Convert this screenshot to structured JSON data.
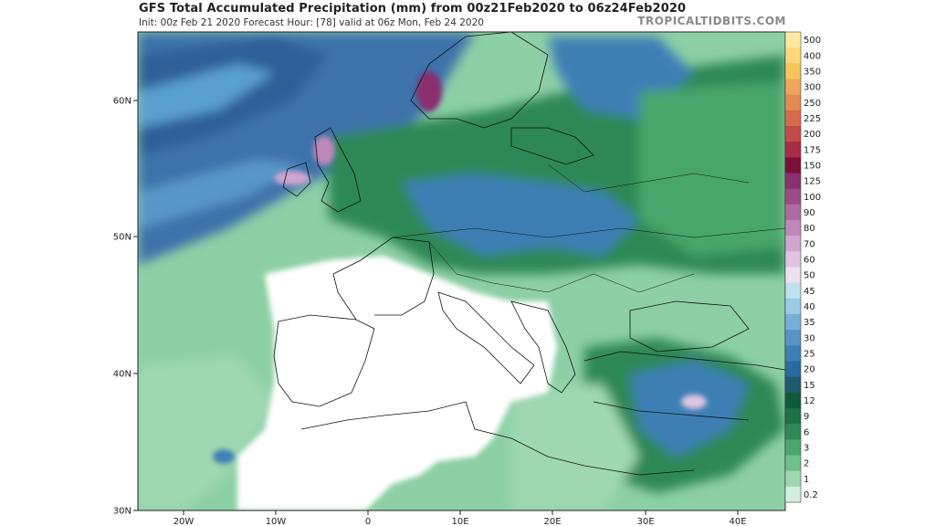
{
  "header": {
    "title": "GFS Total Accumulated Precipitation (mm) from 00z21Feb2020 to 06z24Feb2020",
    "subtitle": "Init: 00z Feb 21 2020   Forecast Hour: [78]   valid at 06z Mon, Feb 24 2020",
    "brand": "TROPICALTIDBITS.COM"
  },
  "axes": {
    "lat_labels": [
      "60N",
      "50N",
      "40N",
      "30N"
    ],
    "lon_labels": [
      "20W",
      "10W",
      "0",
      "10E",
      "20E",
      "30E",
      "40E"
    ]
  },
  "colorbar": {
    "levels": [
      {
        "label": "500",
        "color": "#ffe9a2"
      },
      {
        "label": "400",
        "color": "#fbd97a"
      },
      {
        "label": "350",
        "color": "#f6c45e"
      },
      {
        "label": "300",
        "color": "#efa65a"
      },
      {
        "label": "250",
        "color": "#e48a52"
      },
      {
        "label": "225",
        "color": "#d66b4c"
      },
      {
        "label": "200",
        "color": "#c04a4a"
      },
      {
        "label": "175",
        "color": "#a82c45"
      },
      {
        "label": "150",
        "color": "#7d0f3a"
      },
      {
        "label": "125",
        "color": "#8a2f6e"
      },
      {
        "label": "100",
        "color": "#9b4b8a"
      },
      {
        "label": "90",
        "color": "#ad6aa3"
      },
      {
        "label": "80",
        "color": "#bf88ba"
      },
      {
        "label": "70",
        "color": "#d0a6cf"
      },
      {
        "label": "60",
        "color": "#e0c4e2"
      },
      {
        "label": "50",
        "color": "#eedff1"
      },
      {
        "label": "45",
        "color": "#bfe1ef"
      },
      {
        "label": "40",
        "color": "#9bcbe5"
      },
      {
        "label": "35",
        "color": "#76b0d6"
      },
      {
        "label": "30",
        "color": "#5694c4"
      },
      {
        "label": "25",
        "color": "#3e7fb5"
      },
      {
        "label": "20",
        "color": "#2a6aa0"
      },
      {
        "label": "15",
        "color": "#1f5a6e"
      },
      {
        "label": "12",
        "color": "#0f5a3c"
      },
      {
        "label": "9",
        "color": "#1d7048"
      },
      {
        "label": "6",
        "color": "#2f8855"
      },
      {
        "label": "3",
        "color": "#4aa66a"
      },
      {
        "label": "2",
        "color": "#6fc08a"
      },
      {
        "label": "1",
        "color": "#9fd8b0"
      },
      {
        "label": "0.2",
        "color": "#d3eedc"
      }
    ]
  },
  "colors": {
    "ocean_heavy": "#3a6fa8",
    "ocean_medium": "#4f8fc4",
    "green_dark": "#2f8855",
    "green_light": "#8ed0a6",
    "dry": "#ffffff",
    "border": "#111111"
  }
}
